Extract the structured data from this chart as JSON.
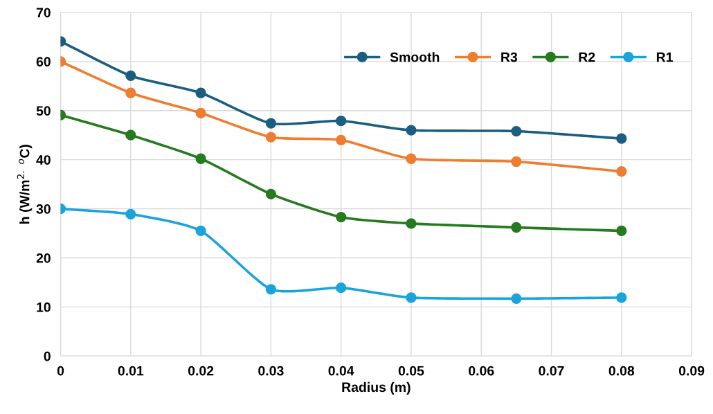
{
  "chart_data": {
    "type": "line",
    "xlabel": "Radius (m)",
    "ylabel": "h (W/m$^{2.}$ $^{o}$C)",
    "xlim": [
      0,
      0.09
    ],
    "xticks": [
      {
        "value": 0,
        "label": "0"
      },
      0.01,
      0.02,
      0.03,
      0.04,
      0.05,
      0.06,
      0.07,
      0.08,
      0.09
    ],
    "ylim": [
      0,
      70
    ],
    "yticks": [
      0,
      10,
      20,
      30,
      40,
      50,
      60,
      70
    ],
    "grid": true,
    "legend": "top right",
    "marker": "circle",
    "line_style": "solid",
    "x": [
      0,
      0.01,
      0.02,
      0.03,
      0.04,
      0.05,
      0.065,
      0.08
    ],
    "series": [
      {
        "name": "Smooth",
        "color": "#1b5e82",
        "values": [
          64.1,
          57.1,
          53.6,
          47.4,
          47.9,
          46.0,
          45.8,
          44.3
        ]
      },
      {
        "name": "R3",
        "color": "#ed7d31",
        "values": [
          60.0,
          53.6,
          49.5,
          44.6,
          44.0,
          40.2,
          39.6,
          37.6
        ]
      },
      {
        "name": "R2",
        "color": "#267a1f",
        "values": [
          49.1,
          45.0,
          40.2,
          33.0,
          28.3,
          27.0,
          26.2,
          25.5
        ]
      },
      {
        "name": "R1",
        "color": "#1ba3dc",
        "values": [
          30.0,
          28.9,
          25.5,
          13.6,
          13.9,
          11.9,
          11.7,
          11.9
        ]
      }
    ]
  }
}
